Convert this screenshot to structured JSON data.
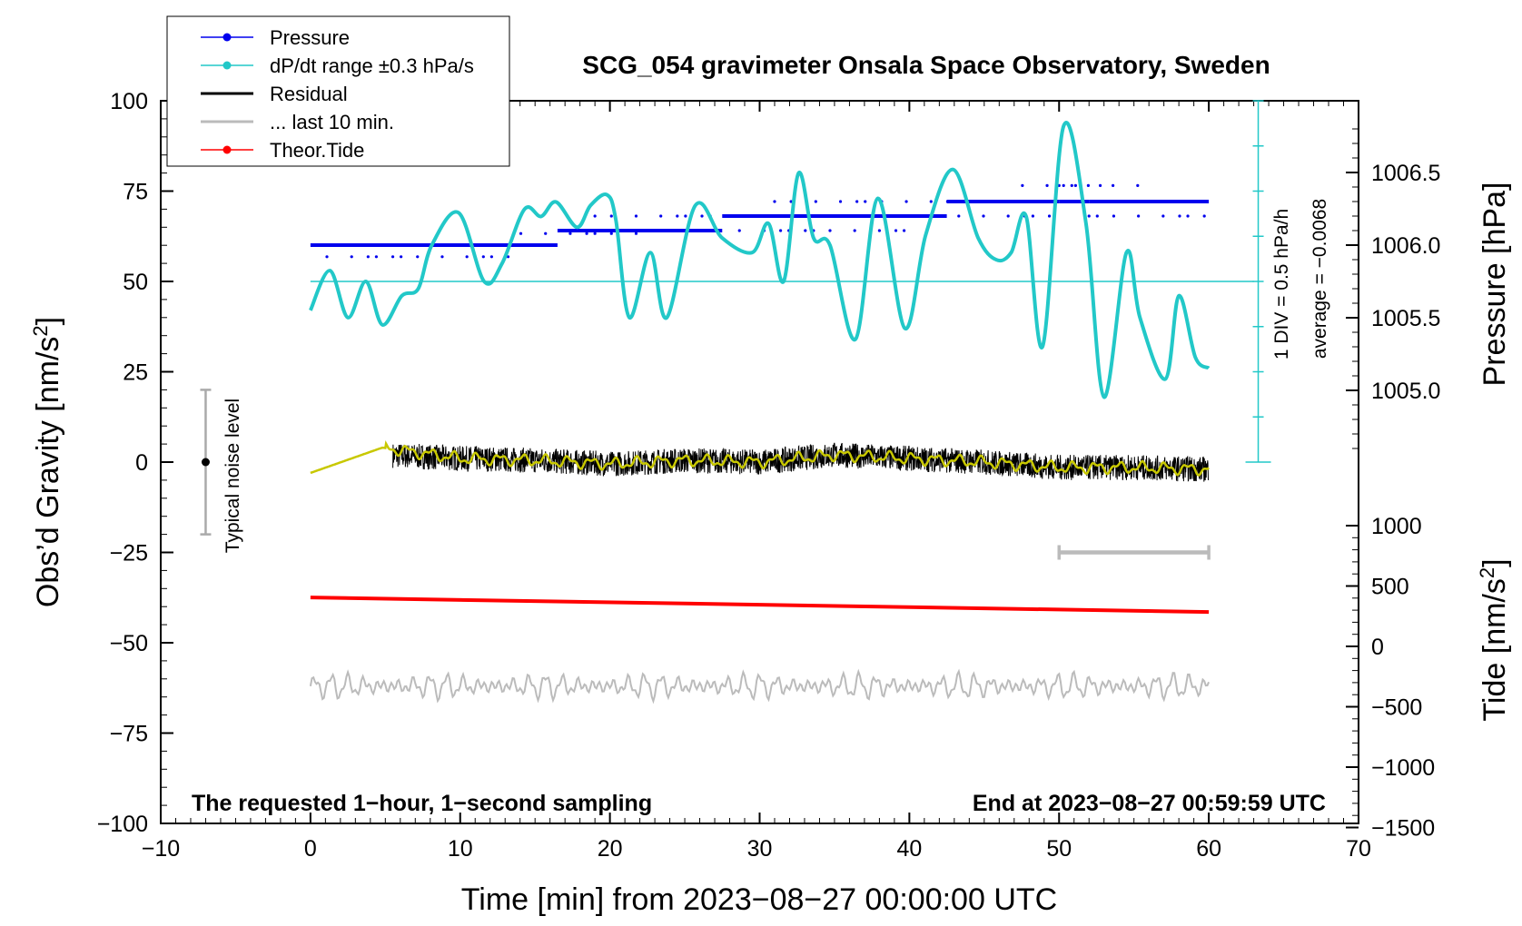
{
  "chart_data": {
    "type": "line",
    "title": "SCG_054 gravimeter Onsala Space Observatory, Sweden",
    "xlabel": "Time [min] from 2023−08−27 00:00:00 UTC",
    "ylabel_left_prefix": "Obs’d Gravity [nm/s",
    "ylabel_left_sup": "2",
    "ylabel_left_suffix": "]",
    "ylabel_pressure": "Pressure [hPa]",
    "ylabel_tide_prefix": "Tide [nm/s",
    "ylabel_tide_sup": "2",
    "ylabel_tide_suffix": "]",
    "xlim": [
      -10,
      70
    ],
    "ylim": [
      -100,
      100
    ],
    "x_ticks": [
      "−10",
      "0",
      "10",
      "20",
      "30",
      "40",
      "50",
      "60",
      "70"
    ],
    "x_tick_values": [
      -10,
      0,
      10,
      20,
      30,
      40,
      50,
      60,
      70
    ],
    "y_ticks": [
      "100",
      "75",
      "50",
      "25",
      "0",
      "−25",
      "−50",
      "−75",
      "−100"
    ],
    "y_tick_values": [
      100,
      75,
      50,
      25,
      0,
      -25,
      -50,
      -75,
      -100
    ],
    "pressure_axis": {
      "ticks": [
        "1006.5",
        "1006.0",
        "1005.5",
        "1005.0"
      ],
      "values": [
        1006.5,
        1006.0,
        1005.5,
        1005.0
      ],
      "range": [
        1004.55,
        1006.85
      ]
    },
    "tide_axis": {
      "ticks": [
        "1000",
        "500",
        "0",
        "−500",
        "−1000",
        "−1500"
      ],
      "values": [
        1000,
        500,
        0,
        -500,
        -1000,
        -1500
      ],
      "range": [
        -1500,
        1000
      ]
    },
    "legend": [
      {
        "label": "Pressure",
        "color": "#0000ee",
        "marker": true
      },
      {
        "label": "dP/dt range ±0.3 hPa/s",
        "color": "#22c8c8",
        "marker": true
      },
      {
        "label": "Residual",
        "color": "#000000",
        "marker": false
      },
      {
        "label": "... last 10 min.",
        "color": "#bbbbbb",
        "marker": false
      },
      {
        "label": "Theor.Tide",
        "color": "#ff0000",
        "marker": true
      }
    ],
    "noise_bar": {
      "label": "Typical noise level",
      "x": -7,
      "center": 0,
      "half_range": 20
    },
    "dpdt_scale": {
      "label1": "1 DIV = 0.5 hPa/h",
      "label2": "average = −0.0068",
      "baseline": 50
    },
    "last10_bar": {
      "x_from": 50,
      "x_to": 60,
      "y": -25
    },
    "note_left": "The requested 1−hour, 1−second sampling",
    "note_right": "End at 2023−08−27 00:59:59 UTC",
    "series": [
      {
        "name": "Pressure (main levels)",
        "color": "#0000ee",
        "segments": [
          {
            "x": [
              0,
              16.5
            ],
            "pressure": 1006.0
          },
          {
            "x": [
              16.5,
              27.5
            ],
            "pressure": 1006.1
          },
          {
            "x": [
              27.5,
              42.5
            ],
            "pressure": 1006.2
          },
          {
            "x": [
              42.5,
              50
            ],
            "pressure": 1006.3
          },
          {
            "x": [
              50,
              52
            ],
            "pressure": 1006.3
          },
          {
            "x": [
              52,
              60
            ],
            "pressure": 1006.3
          }
        ],
        "dots": [
          {
            "x": [
              0,
              13.5
            ],
            "pressure": 1005.92
          },
          {
            "x": [
              13.5,
              22
            ],
            "pressure": 1006.08
          },
          {
            "x": [
              19,
              27
            ],
            "pressure": 1006.2
          },
          {
            "x": [
              27,
              40
            ],
            "pressure": 1006.1
          },
          {
            "x": [
              31,
              44
            ],
            "pressure": 1006.3
          },
          {
            "x": [
              40,
              50
            ],
            "pressure": 1006.2
          },
          {
            "x": [
              47,
              56
            ],
            "pressure": 1006.41
          },
          {
            "x": [
              50,
              54
            ],
            "pressure": 1006.41
          },
          {
            "x": [
              52,
              60
            ],
            "pressure": 1006.2
          }
        ]
      },
      {
        "name": "dP/dt",
        "color": "#22c8c8",
        "x": [
          0,
          1.3,
          2.5,
          3.7,
          4.8,
          6.1,
          7.2,
          8.1,
          9.9,
          11.6,
          12.8,
          14.3,
          15.4,
          16.4,
          17.8,
          18.7,
          19.8,
          20.4,
          21.3,
          22.7,
          23.8,
          25.7,
          27.5,
          29.5,
          30.6,
          31.6,
          32.6,
          33.6,
          34.7,
          36.4,
          37.9,
          39.7,
          41.1,
          42.9,
          44.6,
          45.8,
          46.8,
          47.8,
          48.9,
          50.3,
          51.8,
          53.0,
          54.5,
          55.4,
          57.1,
          58.0,
          59.1,
          60.0
        ],
        "y": [
          42,
          53,
          40,
          50,
          38,
          46,
          48,
          60,
          69,
          50,
          55,
          70,
          68,
          72,
          65,
          71,
          74,
          67,
          40,
          58,
          40,
          71,
          62,
          58,
          66,
          50,
          80,
          62,
          60,
          34,
          73,
          37,
          63,
          81,
          62,
          56,
          58,
          68,
          32,
          93,
          66,
          18,
          58,
          40,
          23,
          46,
          29,
          26
        ]
      },
      {
        "name": "Residual",
        "color": "#000000",
        "x": [
          5,
          10,
          15,
          20,
          25,
          30,
          35,
          40,
          45,
          50,
          55,
          60
        ],
        "y": [
          2,
          1,
          0.5,
          -0.5,
          0.5,
          0,
          2,
          1,
          0,
          -1.5,
          -1.5,
          -2
        ]
      },
      {
        "name": "Residual (smoothed)",
        "color": "#c8c800",
        "x": [
          0,
          4.8,
          10,
          15,
          20,
          25,
          30,
          35,
          40,
          45,
          50,
          55,
          60
        ],
        "y": [
          -3,
          4,
          1,
          0.5,
          -0.5,
          0.5,
          0,
          2,
          1,
          0,
          -1.5,
          -1.5,
          -2
        ]
      },
      {
        "name": "Theor.Tide",
        "color": "#ff0000",
        "x": [
          0,
          60
        ],
        "tide": [
          405,
          285
        ]
      },
      {
        "name": "Last 10 min",
        "color": "#bbbbbb",
        "x": [
          0,
          60
        ],
        "y_base": -62,
        "amplitude": 2.5
      }
    ]
  }
}
